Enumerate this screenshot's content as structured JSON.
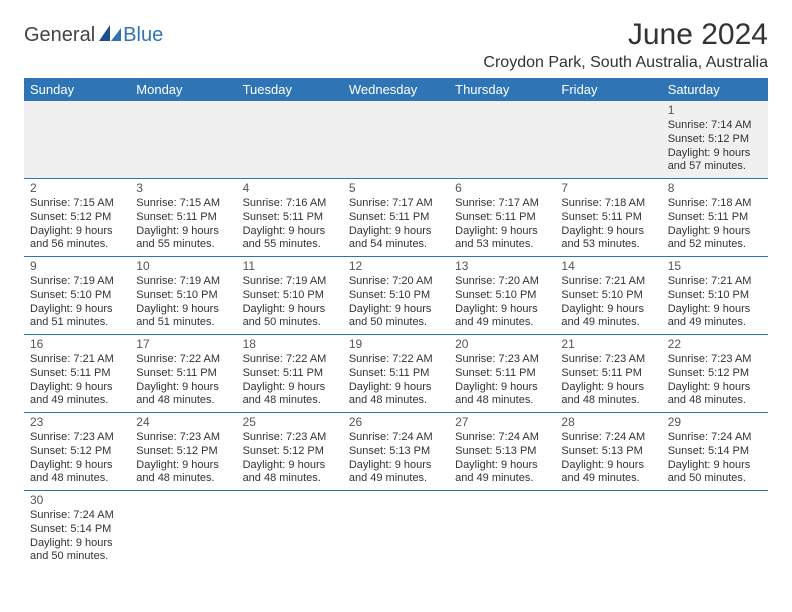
{
  "logo": {
    "text1": "General",
    "text2": "Blue"
  },
  "title": "June 2024",
  "subtitle": "Croydon Park, South Australia, Australia",
  "header_color": "#2f75b5",
  "day_headers": [
    "Sunday",
    "Monday",
    "Tuesday",
    "Wednesday",
    "Thursday",
    "Friday",
    "Saturday"
  ],
  "weeks": [
    [
      null,
      null,
      null,
      null,
      null,
      null,
      {
        "n": "1",
        "sr": "7:14 AM",
        "ss": "5:12 PM",
        "dl": "9 hours and 57 minutes."
      }
    ],
    [
      {
        "n": "2",
        "sr": "7:15 AM",
        "ss": "5:12 PM",
        "dl": "9 hours and 56 minutes."
      },
      {
        "n": "3",
        "sr": "7:15 AM",
        "ss": "5:11 PM",
        "dl": "9 hours and 55 minutes."
      },
      {
        "n": "4",
        "sr": "7:16 AM",
        "ss": "5:11 PM",
        "dl": "9 hours and 55 minutes."
      },
      {
        "n": "5",
        "sr": "7:17 AM",
        "ss": "5:11 PM",
        "dl": "9 hours and 54 minutes."
      },
      {
        "n": "6",
        "sr": "7:17 AM",
        "ss": "5:11 PM",
        "dl": "9 hours and 53 minutes."
      },
      {
        "n": "7",
        "sr": "7:18 AM",
        "ss": "5:11 PM",
        "dl": "9 hours and 53 minutes."
      },
      {
        "n": "8",
        "sr": "7:18 AM",
        "ss": "5:11 PM",
        "dl": "9 hours and 52 minutes."
      }
    ],
    [
      {
        "n": "9",
        "sr": "7:19 AM",
        "ss": "5:10 PM",
        "dl": "9 hours and 51 minutes."
      },
      {
        "n": "10",
        "sr": "7:19 AM",
        "ss": "5:10 PM",
        "dl": "9 hours and 51 minutes."
      },
      {
        "n": "11",
        "sr": "7:19 AM",
        "ss": "5:10 PM",
        "dl": "9 hours and 50 minutes."
      },
      {
        "n": "12",
        "sr": "7:20 AM",
        "ss": "5:10 PM",
        "dl": "9 hours and 50 minutes."
      },
      {
        "n": "13",
        "sr": "7:20 AM",
        "ss": "5:10 PM",
        "dl": "9 hours and 49 minutes."
      },
      {
        "n": "14",
        "sr": "7:21 AM",
        "ss": "5:10 PM",
        "dl": "9 hours and 49 minutes."
      },
      {
        "n": "15",
        "sr": "7:21 AM",
        "ss": "5:10 PM",
        "dl": "9 hours and 49 minutes."
      }
    ],
    [
      {
        "n": "16",
        "sr": "7:21 AM",
        "ss": "5:11 PM",
        "dl": "9 hours and 49 minutes."
      },
      {
        "n": "17",
        "sr": "7:22 AM",
        "ss": "5:11 PM",
        "dl": "9 hours and 48 minutes."
      },
      {
        "n": "18",
        "sr": "7:22 AM",
        "ss": "5:11 PM",
        "dl": "9 hours and 48 minutes."
      },
      {
        "n": "19",
        "sr": "7:22 AM",
        "ss": "5:11 PM",
        "dl": "9 hours and 48 minutes."
      },
      {
        "n": "20",
        "sr": "7:23 AM",
        "ss": "5:11 PM",
        "dl": "9 hours and 48 minutes."
      },
      {
        "n": "21",
        "sr": "7:23 AM",
        "ss": "5:11 PM",
        "dl": "9 hours and 48 minutes."
      },
      {
        "n": "22",
        "sr": "7:23 AM",
        "ss": "5:12 PM",
        "dl": "9 hours and 48 minutes."
      }
    ],
    [
      {
        "n": "23",
        "sr": "7:23 AM",
        "ss": "5:12 PM",
        "dl": "9 hours and 48 minutes."
      },
      {
        "n": "24",
        "sr": "7:23 AM",
        "ss": "5:12 PM",
        "dl": "9 hours and 48 minutes."
      },
      {
        "n": "25",
        "sr": "7:23 AM",
        "ss": "5:12 PM",
        "dl": "9 hours and 48 minutes."
      },
      {
        "n": "26",
        "sr": "7:24 AM",
        "ss": "5:13 PM",
        "dl": "9 hours and 49 minutes."
      },
      {
        "n": "27",
        "sr": "7:24 AM",
        "ss": "5:13 PM",
        "dl": "9 hours and 49 minutes."
      },
      {
        "n": "28",
        "sr": "7:24 AM",
        "ss": "5:13 PM",
        "dl": "9 hours and 49 minutes."
      },
      {
        "n": "29",
        "sr": "7:24 AM",
        "ss": "5:14 PM",
        "dl": "9 hours and 50 minutes."
      }
    ],
    [
      {
        "n": "30",
        "sr": "7:24 AM",
        "ss": "5:14 PM",
        "dl": "9 hours and 50 minutes."
      },
      null,
      null,
      null,
      null,
      null,
      null
    ]
  ],
  "labels": {
    "sunrise": "Sunrise:",
    "sunset": "Sunset:",
    "daylight": "Daylight:"
  }
}
